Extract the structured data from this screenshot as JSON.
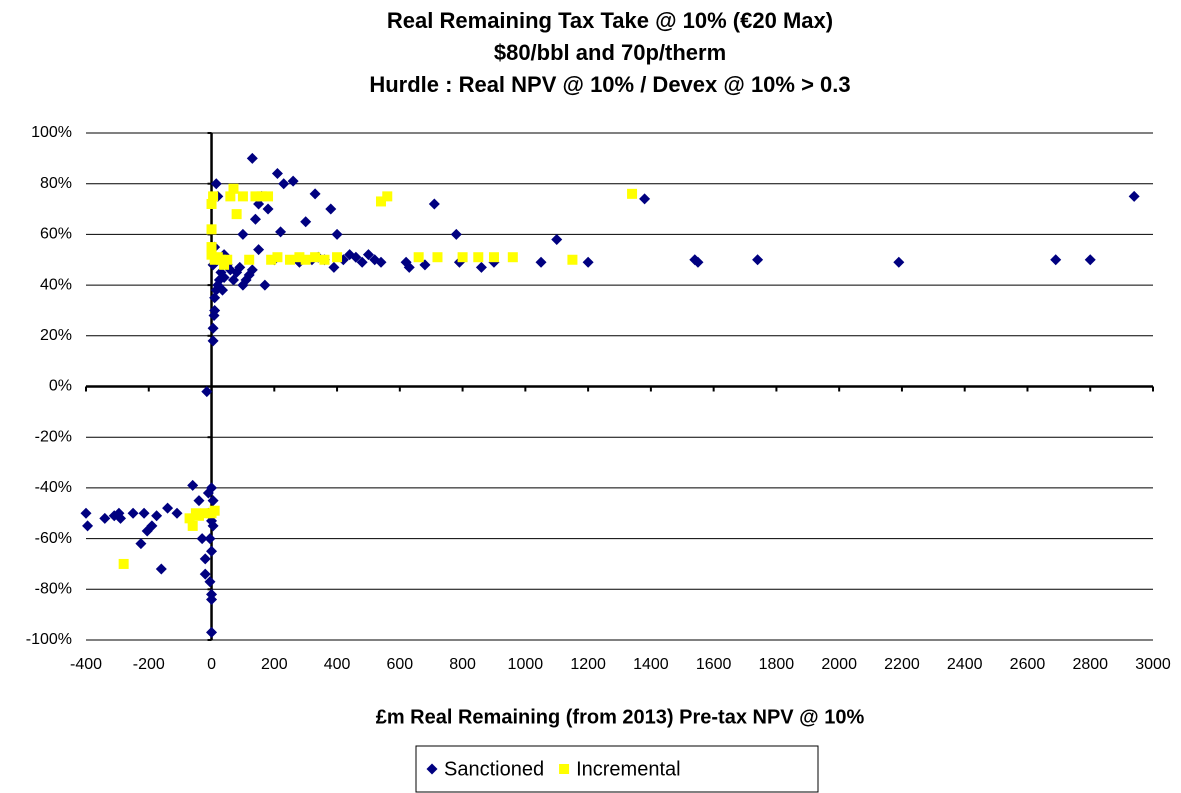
{
  "chart_data": {
    "type": "scatter",
    "title": [
      "Real Remaining Tax Take @ 10% (€20 Max)",
      "$80/bbl and 70p/therm",
      "Hurdle : Real NPV @ 10% / Devex @ 10% > 0.3"
    ],
    "x_label": "£m Real Remaining (from 2013) Pre-tax NPV @ 10%",
    "xlim": [
      -400,
      3000
    ],
    "xticks": [
      -400,
      -200,
      0,
      200,
      400,
      600,
      800,
      1000,
      1200,
      1400,
      1600,
      1800,
      2000,
      2200,
      2400,
      2600,
      2800,
      3000
    ],
    "ylim": [
      -100,
      100
    ],
    "yticks": [
      {
        "value": -100,
        "label": "-100%"
      },
      {
        "value": -80,
        "label": "-80%"
      },
      {
        "value": -60,
        "label": "-60%"
      },
      {
        "value": -40,
        "label": "-40%"
      },
      {
        "value": -20,
        "label": "-20%"
      },
      {
        "value": 0,
        "label": "0%"
      },
      {
        "value": 20,
        "label": "20%"
      },
      {
        "value": 40,
        "label": "40%"
      },
      {
        "value": 60,
        "label": "60%"
      },
      {
        "value": 80,
        "label": "80%"
      },
      {
        "value": 100,
        "label": "100%"
      }
    ],
    "grid": true,
    "legend": "bottom",
    "series": [
      {
        "name": "Sanctioned",
        "color": "#000080",
        "marker": "diamond",
        "x": [
          -400,
          -395,
          -340,
          -310,
          -295,
          -290,
          -250,
          -225,
          -215,
          -205,
          -190,
          -175,
          -160,
          -140,
          -110,
          -60,
          -40,
          -30,
          -20,
          -20,
          -15,
          -10,
          -10,
          -5,
          0,
          0,
          0,
          5,
          0,
          0,
          0,
          -5,
          5,
          5,
          5,
          8,
          10,
          10,
          15,
          20,
          25,
          30,
          35,
          40,
          5,
          10,
          15,
          20,
          30,
          40,
          50,
          60,
          70,
          80,
          90,
          100,
          110,
          120,
          130,
          140,
          130,
          100,
          150,
          150,
          170,
          180,
          160,
          200,
          210,
          220,
          230,
          260,
          280,
          300,
          320,
          330,
          340,
          360,
          380,
          390,
          400,
          420,
          440,
          460,
          480,
          500,
          520,
          540,
          620,
          630,
          680,
          710,
          780,
          790,
          860,
          900,
          1050,
          1100,
          1200,
          1380,
          1540,
          1550,
          1740,
          2190,
          2690,
          2800,
          2940
        ],
        "values": [
          -50,
          -55,
          -52,
          -51,
          -50,
          -52,
          -50,
          -62,
          -50,
          -57,
          -55,
          -51,
          -72,
          -48,
          -50,
          -39,
          -45,
          -60,
          -68,
          -74,
          -2,
          -42,
          -50,
          -77,
          -40,
          -53,
          -65,
          -55,
          -82,
          -84,
          -97,
          -60,
          -45,
          18,
          23,
          28,
          30,
          35,
          38,
          40,
          42,
          45,
          38,
          43,
          48,
          55,
          80,
          75,
          50,
          52,
          48,
          46,
          42,
          45,
          47,
          40,
          42,
          44,
          46,
          66,
          90,
          60,
          72,
          54,
          40,
          70,
          75,
          50,
          84,
          61,
          80,
          81,
          49,
          65,
          50,
          76,
          51,
          50,
          70,
          47,
          60,
          50,
          52,
          51,
          49,
          52,
          50,
          49,
          49,
          47,
          48,
          72,
          60,
          49,
          47,
          49,
          49,
          58,
          49,
          74,
          50,
          49,
          50,
          49,
          50,
          50,
          75
        ]
      },
      {
        "name": "Incremental",
        "color": "#FFFF00",
        "marker": "square",
        "x": [
          -280,
          -70,
          -60,
          -50,
          -40,
          0,
          10,
          -20,
          0,
          0,
          0,
          0,
          5,
          10,
          20,
          30,
          40,
          50,
          60,
          70,
          80,
          100,
          120,
          140,
          160,
          180,
          190,
          210,
          250,
          280,
          300,
          330,
          360,
          400,
          540,
          560,
          660,
          720,
          800,
          850,
          900,
          960,
          1150,
          1340
        ],
        "values": [
          -70,
          -52,
          -55,
          -50,
          -51,
          -50,
          -49,
          -50,
          52,
          55,
          62,
          72,
          75,
          50,
          51,
          50,
          48,
          50,
          75,
          78,
          68,
          75,
          50,
          75,
          75,
          75,
          50,
          51,
          50,
          51,
          50,
          51,
          50,
          51,
          73,
          75,
          51,
          51,
          51,
          51,
          51,
          51,
          50,
          76
        ]
      }
    ]
  }
}
